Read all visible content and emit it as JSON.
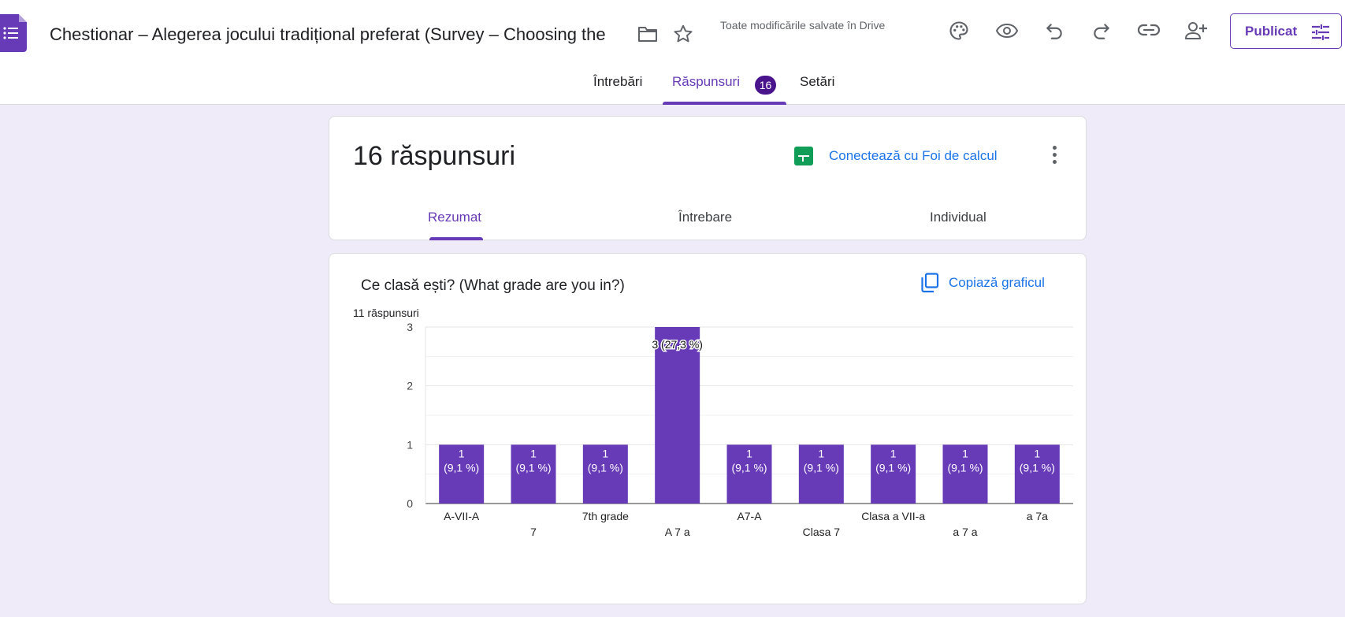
{
  "header": {
    "title": "Chestionar – Alegerea jocului tradițional preferat (Survey – Choosing the",
    "save_status": "Toate modificările salvate în Drive",
    "publish_label": "Publicat",
    "icons": [
      "forms-logo-icon",
      "folder-icon",
      "star-icon",
      "palette-icon",
      "eye-icon",
      "undo-icon",
      "redo-icon",
      "link-icon",
      "add-person-icon",
      "tune-icon"
    ]
  },
  "tabs": {
    "questions": "Întrebări",
    "responses": "Răspunsuri",
    "responses_badge": "16",
    "settings": "Setări"
  },
  "summary": {
    "count_label": "16 răspunsuri",
    "connect_label": "Conectează cu Foi de calcul",
    "subtabs": {
      "summary": "Rezumat",
      "question": "Întrebare",
      "individual": "Individual"
    }
  },
  "question": {
    "title": "Ce clasă ești? (What grade are you in?)",
    "response_count": "11 răspunsuri",
    "copy_chart_label": "Copiază graficul"
  },
  "colors": {
    "accent": "#673ab7",
    "bar": "#673ab7",
    "link": "#1a73e8",
    "background": "#f0ebf8"
  },
  "chart_data": {
    "type": "bar",
    "categories": [
      "A-VII-A",
      "7",
      "7th grade",
      "A 7 a",
      "A7-A",
      "Clasa 7",
      "Clasa a VII-a",
      "a 7 a",
      "a 7a"
    ],
    "values": [
      1,
      1,
      1,
      3,
      1,
      1,
      1,
      1,
      1
    ],
    "value_labels": [
      "1 (9,1 %)",
      "1 (9,1 %)",
      "1 (9,1 %)",
      "3 (27,3 %)",
      "1 (9,1 %)",
      "1 (9,1 %)",
      "1 (9,1 %)",
      "1 (9,1 %)",
      "1 (9,1 %)"
    ],
    "yticks": [
      0,
      1,
      2,
      3
    ],
    "ylim": [
      0,
      3
    ],
    "grid": true,
    "legend": "none"
  }
}
